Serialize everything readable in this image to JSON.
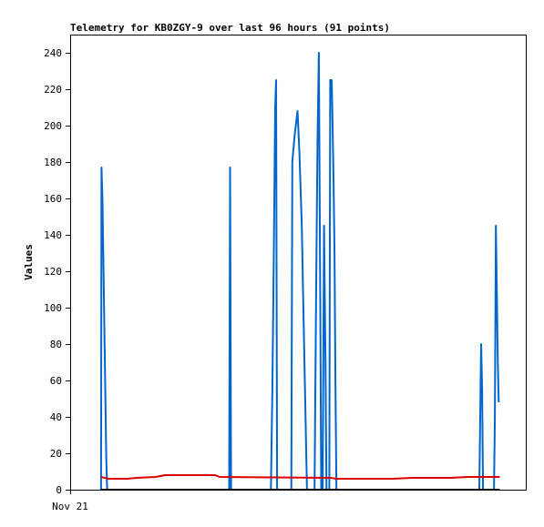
{
  "chart_data": {
    "type": "line",
    "title": "Telemetry for KB0ZGY-9 over last 96 hours (91 points)",
    "xlabel": "",
    "ylabel": "Values",
    "ylim": [
      0,
      250
    ],
    "yticks": [
      0,
      20,
      40,
      60,
      80,
      100,
      120,
      140,
      160,
      180,
      200,
      220,
      240
    ],
    "xlim": [
      0,
      96
    ],
    "xtick_labels": [
      {
        "x": 0,
        "label": "Nov 21"
      }
    ],
    "grid": false,
    "series": [
      {
        "color": "#0066cc",
        "points": [
          [
            6.5,
            0
          ],
          [
            6.6,
            177
          ],
          [
            6.8,
            160
          ],
          [
            7.0,
            124
          ],
          [
            7.2,
            90
          ],
          [
            7.4,
            55
          ],
          [
            7.6,
            18
          ],
          [
            7.8,
            0
          ],
          [
            33.5,
            0
          ],
          [
            33.7,
            177
          ],
          [
            33.9,
            0
          ],
          [
            42.3,
            0
          ],
          [
            42.6,
            55
          ],
          [
            42.9,
            125
          ],
          [
            43.2,
            210
          ],
          [
            43.4,
            225
          ],
          [
            43.6,
            0
          ],
          [
            46.6,
            0
          ],
          [
            46.8,
            180
          ],
          [
            47.3,
            195
          ],
          [
            47.9,
            208
          ],
          [
            48.3,
            185
          ],
          [
            48.8,
            145
          ],
          [
            49.2,
            90
          ],
          [
            49.6,
            40
          ],
          [
            49.9,
            0
          ],
          [
            51.5,
            0
          ],
          [
            51.8,
            100
          ],
          [
            52.1,
            190
          ],
          [
            52.4,
            240
          ],
          [
            52.7,
            100
          ],
          [
            52.9,
            0
          ],
          [
            53.2,
            0
          ],
          [
            53.5,
            145
          ],
          [
            53.8,
            70
          ],
          [
            54.0,
            0
          ],
          [
            54.6,
            0
          ],
          [
            54.8,
            225
          ],
          [
            55.1,
            225
          ],
          [
            55.3,
            200
          ],
          [
            55.5,
            168
          ],
          [
            55.7,
            130
          ],
          [
            55.9,
            60
          ],
          [
            56.1,
            0
          ],
          [
            86.2,
            0
          ],
          [
            86.4,
            40
          ],
          [
            86.6,
            80
          ],
          [
            86.8,
            55
          ],
          [
            87.0,
            0
          ],
          [
            89.3,
            0
          ],
          [
            89.5,
            40
          ],
          [
            89.7,
            145
          ],
          [
            89.9,
            110
          ],
          [
            90.1,
            70
          ],
          [
            90.3,
            48
          ]
        ]
      },
      {
        "color": "#dd0000",
        "points": [
          [
            6.5,
            7.0
          ],
          [
            8.0,
            6.0
          ],
          [
            12.0,
            6.0
          ],
          [
            14.0,
            6.5
          ],
          [
            18.0,
            7.0
          ],
          [
            20.0,
            8.0
          ],
          [
            30.5,
            8.0
          ],
          [
            31.5,
            7.0
          ],
          [
            55.0,
            6.5
          ],
          [
            56.0,
            6.0
          ],
          [
            68.0,
            6.0
          ],
          [
            72.0,
            6.5
          ],
          [
            80.0,
            6.5
          ],
          [
            84.0,
            7.0
          ],
          [
            90.5,
            7.0
          ]
        ]
      },
      {
        "color": "#000000",
        "points": [
          [
            6.5,
            0
          ],
          [
            90.5,
            0
          ]
        ]
      }
    ]
  }
}
